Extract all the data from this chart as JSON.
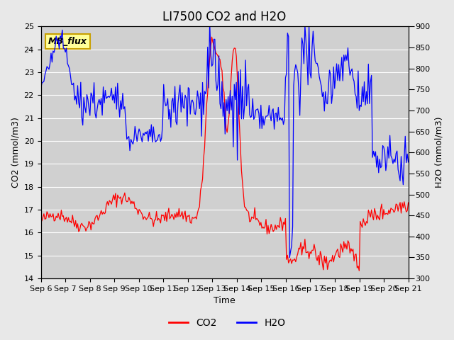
{
  "title": "LI7500 CO2 and H2O",
  "xlabel": "Time",
  "ylabel_left": "CO2 (mmol/m3)",
  "ylabel_right": "H2O (mmol/m3)",
  "co2_ylim": [
    14.0,
    25.0
  ],
  "h2o_ylim": [
    300,
    900
  ],
  "co2_yticks": [
    14.0,
    15.0,
    16.0,
    17.0,
    18.0,
    19.0,
    20.0,
    21.0,
    22.0,
    23.0,
    24.0,
    25.0
  ],
  "h2o_yticks": [
    300,
    350,
    400,
    450,
    500,
    550,
    600,
    650,
    700,
    750,
    800,
    850,
    900
  ],
  "xtick_labels": [
    "Sep 6",
    "Sep 7",
    "Sep 8",
    "Sep 9",
    "Sep 10",
    "Sep 11",
    "Sep 12",
    "Sep 13",
    "Sep 14",
    "Sep 15",
    "Sep 16",
    "Sep 17",
    "Sep 18",
    "Sep 19",
    "Sep 20",
    "Sep 21"
  ],
  "co2_color": "#FF0000",
  "h2o_color": "#0000FF",
  "bg_color": "#E8E8E8",
  "plot_bg_color": "#D0D0D0",
  "annotation_text": "MB_flux",
  "annotation_bg": "#FFFF99",
  "annotation_border": "#C8A000",
  "legend_co2": "CO2",
  "legend_h2o": "H2O",
  "title_fontsize": 12,
  "axis_label_fontsize": 9,
  "tick_fontsize": 8,
  "legend_fontsize": 10
}
